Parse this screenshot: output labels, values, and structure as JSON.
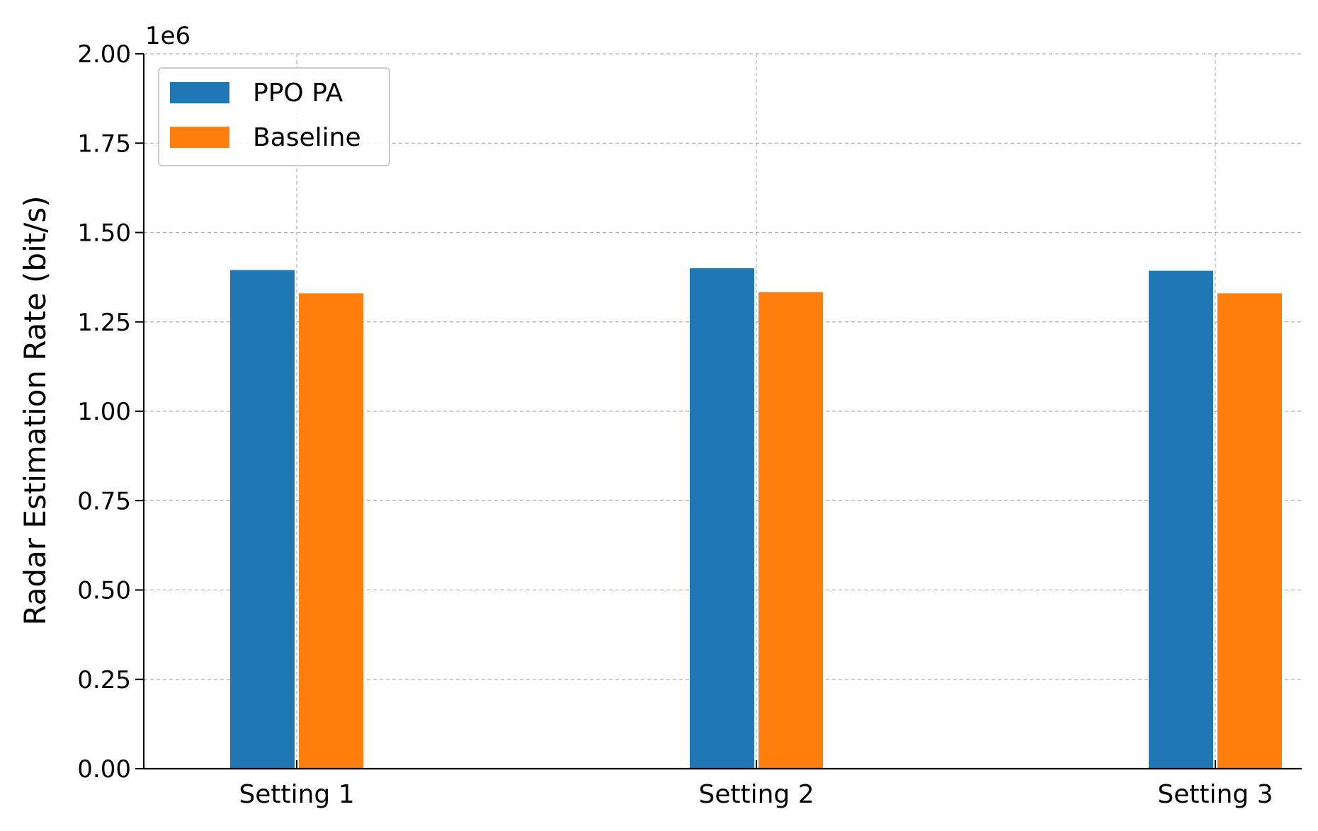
{
  "chart_data": {
    "type": "bar",
    "title": "",
    "xlabel": "",
    "ylabel": "Radar Estimation Rate (bit/s)",
    "y_offset_label": "1e6",
    "y_scale_factor": 1000000,
    "categories": [
      "Setting 1",
      "Setting 2",
      "Setting 3"
    ],
    "series": [
      {
        "name": "PPO PA",
        "color": "#1f77b4",
        "values": [
          1395000,
          1400000,
          1393000
        ]
      },
      {
        "name": "Baseline",
        "color": "#ff7f0e",
        "values": [
          1330000,
          1333000,
          1330000
        ]
      }
    ],
    "ylim": [
      0,
      2000000
    ],
    "yticks": [
      0,
      250000,
      500000,
      750000,
      1000000,
      1250000,
      1500000,
      1750000,
      2000000
    ],
    "ytick_labels": [
      "0.00",
      "0.25",
      "0.50",
      "0.75",
      "1.00",
      "1.25",
      "1.50",
      "1.75",
      "2.00"
    ],
    "grid": true,
    "legend_position": "top-left"
  }
}
